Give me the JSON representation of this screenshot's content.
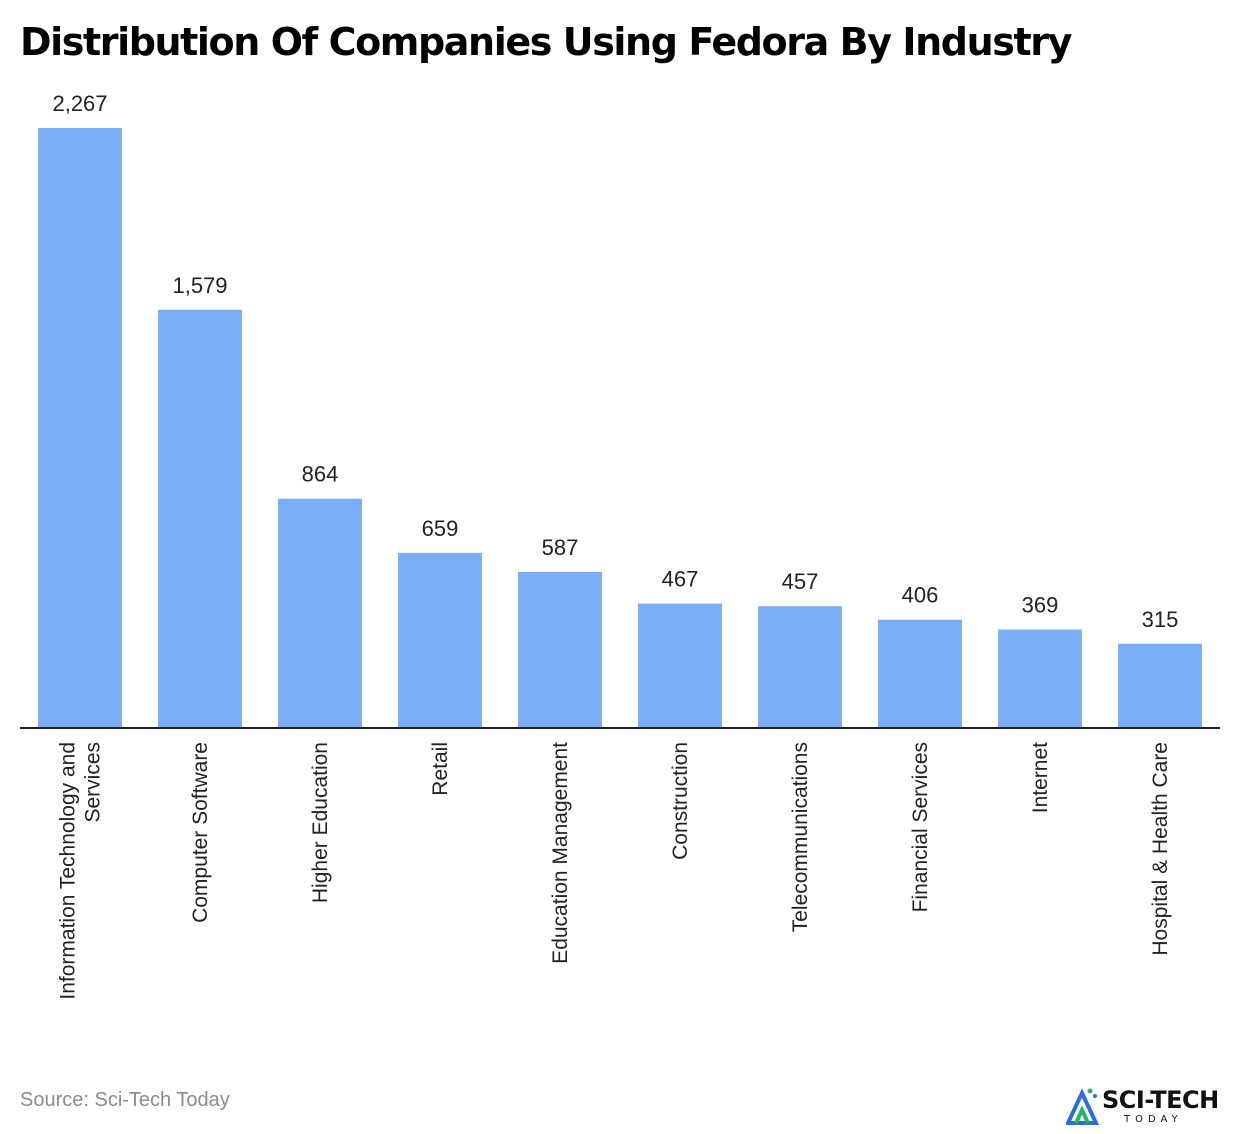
{
  "title": "Distribution Of Companies Using Fedora By Industry",
  "source": "Source: Sci-Tech Today",
  "logo": {
    "name": "SCI-TECH",
    "tagline": "TODAY"
  },
  "colors": {
    "bar": "#7baef7",
    "axis": "#222222",
    "text": "#222222",
    "source": "#8c8c8c"
  },
  "chart_data": {
    "type": "bar",
    "title": "Distribution Of Companies Using Fedora By Industry",
    "xlabel": "",
    "ylabel": "",
    "ylim": [
      0,
      2267
    ],
    "categories": [
      "Information Technology and Services",
      "Computer Software",
      "Higher Education",
      "Retail",
      "Education Management",
      "Construction",
      "Telecommunications",
      "Financial Services",
      "Internet",
      "Hospital & Health Care"
    ],
    "values": [
      2267,
      1579,
      864,
      659,
      587,
      467,
      457,
      406,
      369,
      315
    ],
    "value_labels": [
      "2,267",
      "1,579",
      "864",
      "659",
      "587",
      "467",
      "457",
      "406",
      "369",
      "315"
    ],
    "category_label_lines": [
      [
        "Information Technology and",
        "Services"
      ],
      [
        "Computer Software"
      ],
      [
        "Higher Education"
      ],
      [
        "Retail"
      ],
      [
        "Education Management"
      ],
      [
        "Construction"
      ],
      [
        "Telecommunications"
      ],
      [
        "Financial Services"
      ],
      [
        "Internet"
      ],
      [
        "Hospital & Health Care"
      ]
    ]
  }
}
